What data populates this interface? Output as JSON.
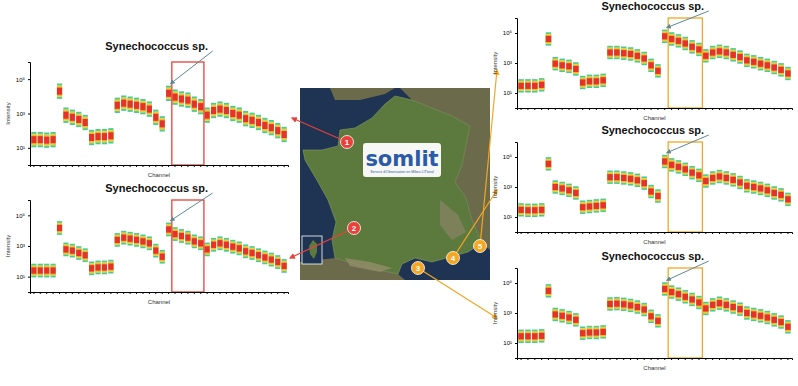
{
  "chart_data": [
    {
      "type": "profile",
      "title": "Synechococcus sp.",
      "station": "1",
      "color": "#e8403a",
      "x_label": "Channel",
      "y_label": "Intensity",
      "log": "y",
      "tick_labels": "y",
      "categories": [
        null,
        null,
        null,
        null,
        null,
        null,
        null,
        null,
        null,
        null,
        null,
        null,
        null,
        null,
        null,
        null,
        null,
        null,
        null,
        null,
        null,
        null,
        null,
        null,
        null,
        null,
        null,
        null,
        null,
        null,
        null,
        null,
        null,
        null,
        null,
        null,
        null,
        null,
        null,
        null
      ],
      "values": [
        30,
        30,
        28,
        30,
        20000,
        800,
        600,
        450,
        300,
        40,
        45,
        45,
        50,
        3000,
        4000,
        3500,
        3000,
        2500,
        1800,
        600,
        250,
        15000,
        9000,
        7000,
        6000,
        3500,
        2500,
        800,
        1500,
        1800,
        1500,
        1000,
        800,
        500,
        400,
        300,
        200,
        150,
        100,
        60
      ],
      "ylim": [
        1,
        1000000
      ],
      "yticks": [
        {
          "value": 10,
          "label": "10¹"
        },
        {
          "value": 1000,
          "label": "10³"
        },
        {
          "value": 100000,
          "label": "10⁵"
        }
      ],
      "peak": 21,
      "highlight": {
        "from": 22,
        "to": 26
      }
    },
    {
      "type": "profile",
      "title": "Synechococcus sp.",
      "station": "2",
      "color": "#e8403a",
      "x_label": "Channel",
      "y_label": "Intensity",
      "log": "y",
      "tick_labels": "y",
      "categories": [
        null,
        null,
        null,
        null,
        null,
        null,
        null,
        null,
        null,
        null,
        null,
        null,
        null,
        null,
        null,
        null,
        null,
        null,
        null,
        null,
        null,
        null,
        null,
        null,
        null,
        null,
        null,
        null,
        null,
        null,
        null,
        null,
        null,
        null,
        null,
        null,
        null,
        null,
        null,
        null
      ],
      "values": [
        25,
        25,
        25,
        25,
        15000,
        600,
        500,
        350,
        250,
        35,
        40,
        40,
        45,
        2500,
        3500,
        3000,
        2500,
        2000,
        1500,
        500,
        200,
        12000,
        6000,
        4500,
        3500,
        2000,
        1500,
        600,
        1200,
        1500,
        1200,
        900,
        700,
        450,
        350,
        250,
        180,
        130,
        90,
        50
      ],
      "ylim": [
        1,
        1000000
      ],
      "yticks": [
        {
          "value": 10,
          "label": "10¹"
        },
        {
          "value": 1000,
          "label": "10³"
        },
        {
          "value": 100000,
          "label": "10⁵"
        }
      ],
      "peak": 21,
      "highlight": {
        "from": 22,
        "to": 26
      }
    },
    {
      "type": "profile",
      "title": "Synechococcus sp.",
      "station": "5",
      "color": "#f5a623",
      "x_label": "Channel",
      "y_label": "Intensity",
      "log": "y",
      "tick_labels": "y",
      "categories": [
        null,
        null,
        null,
        null,
        null,
        null,
        null,
        null,
        null,
        null,
        null,
        null,
        null,
        null,
        null,
        null,
        null,
        null,
        null,
        null,
        null,
        null,
        null,
        null,
        null,
        null,
        null,
        null,
        null,
        null,
        null,
        null,
        null,
        null,
        null,
        null,
        null,
        null,
        null,
        null
      ],
      "values": [
        30,
        30,
        30,
        35,
        40000,
        900,
        700,
        600,
        400,
        50,
        60,
        60,
        70,
        5000,
        5000,
        4500,
        4000,
        3000,
        2000,
        700,
        300,
        60000,
        40000,
        30000,
        20000,
        12000,
        8000,
        3000,
        5000,
        6000,
        5000,
        3500,
        2500,
        1500,
        1200,
        900,
        700,
        500,
        350,
        200
      ],
      "ylim": [
        1,
        1000000
      ],
      "yticks": [
        {
          "value": 10,
          "label": "10¹"
        },
        {
          "value": 1000,
          "label": "10³"
        },
        {
          "value": 100000,
          "label": "10⁵"
        }
      ],
      "peak": 21,
      "highlight": {
        "from": 22,
        "to": 26
      }
    },
    {
      "type": "profile",
      "title": "Synechococcus sp.",
      "station": "4",
      "color": "#f5a623",
      "x_label": "Channel",
      "y_label": "Intensity",
      "log": "y",
      "tick_labels": "y",
      "categories": [
        null,
        null,
        null,
        null,
        null,
        null,
        null,
        null,
        null,
        null,
        null,
        null,
        null,
        null,
        null,
        null,
        null,
        null,
        null,
        null,
        null,
        null,
        null,
        null,
        null,
        null,
        null,
        null,
        null,
        null,
        null,
        null,
        null,
        null,
        null,
        null,
        null,
        null,
        null,
        null
      ],
      "values": [
        30,
        28,
        28,
        30,
        35000,
        1000,
        800,
        600,
        400,
        45,
        50,
        55,
        60,
        4500,
        4500,
        4000,
        3500,
        2800,
        1800,
        500,
        250,
        50000,
        30000,
        22000,
        15000,
        9000,
        6000,
        2500,
        4000,
        5000,
        4000,
        3000,
        2000,
        1200,
        1000,
        800,
        600,
        400,
        300,
        150
      ],
      "ylim": [
        1,
        1000000
      ],
      "yticks": [
        {
          "value": 10,
          "label": "10¹"
        },
        {
          "value": 1000,
          "label": "10³"
        },
        {
          "value": 100000,
          "label": "10⁵"
        }
      ],
      "peak": 21,
      "highlight": {
        "from": 22,
        "to": 26
      }
    },
    {
      "type": "profile",
      "title": "Synechococcus sp.",
      "station": "3",
      "color": "#f5a623",
      "x_label": "Channel",
      "y_label": "Intensity",
      "log": "y",
      "tick_labels": "y",
      "categories": [
        null,
        null,
        null,
        null,
        null,
        null,
        null,
        null,
        null,
        null,
        null,
        null,
        null,
        null,
        null,
        null,
        null,
        null,
        null,
        null,
        null,
        null,
        null,
        null,
        null,
        null,
        null,
        null,
        null,
        null,
        null,
        null,
        null,
        null,
        null,
        null,
        null,
        null,
        null,
        null
      ],
      "values": [
        28,
        28,
        28,
        30,
        30000,
        800,
        650,
        500,
        350,
        45,
        50,
        50,
        55,
        4000,
        4200,
        3800,
        3200,
        2500,
        1700,
        600,
        300,
        40000,
        25000,
        18000,
        12000,
        8000,
        5000,
        2000,
        3500,
        4500,
        3500,
        2500,
        1800,
        1000,
        800,
        650,
        500,
        350,
        250,
        120
      ],
      "ylim": [
        1,
        1000000
      ],
      "yticks": [
        {
          "value": 10,
          "label": "10¹"
        },
        {
          "value": 1000,
          "label": "10³"
        },
        {
          "value": 100000,
          "label": "10⁵"
        }
      ],
      "peak": 21,
      "highlight": {
        "from": 22,
        "to": 26
      }
    }
  ],
  "map": {
    "logo": "somlit",
    "logo_subtitle": "Service d'Observation en Milieu LITtoral"
  }
}
